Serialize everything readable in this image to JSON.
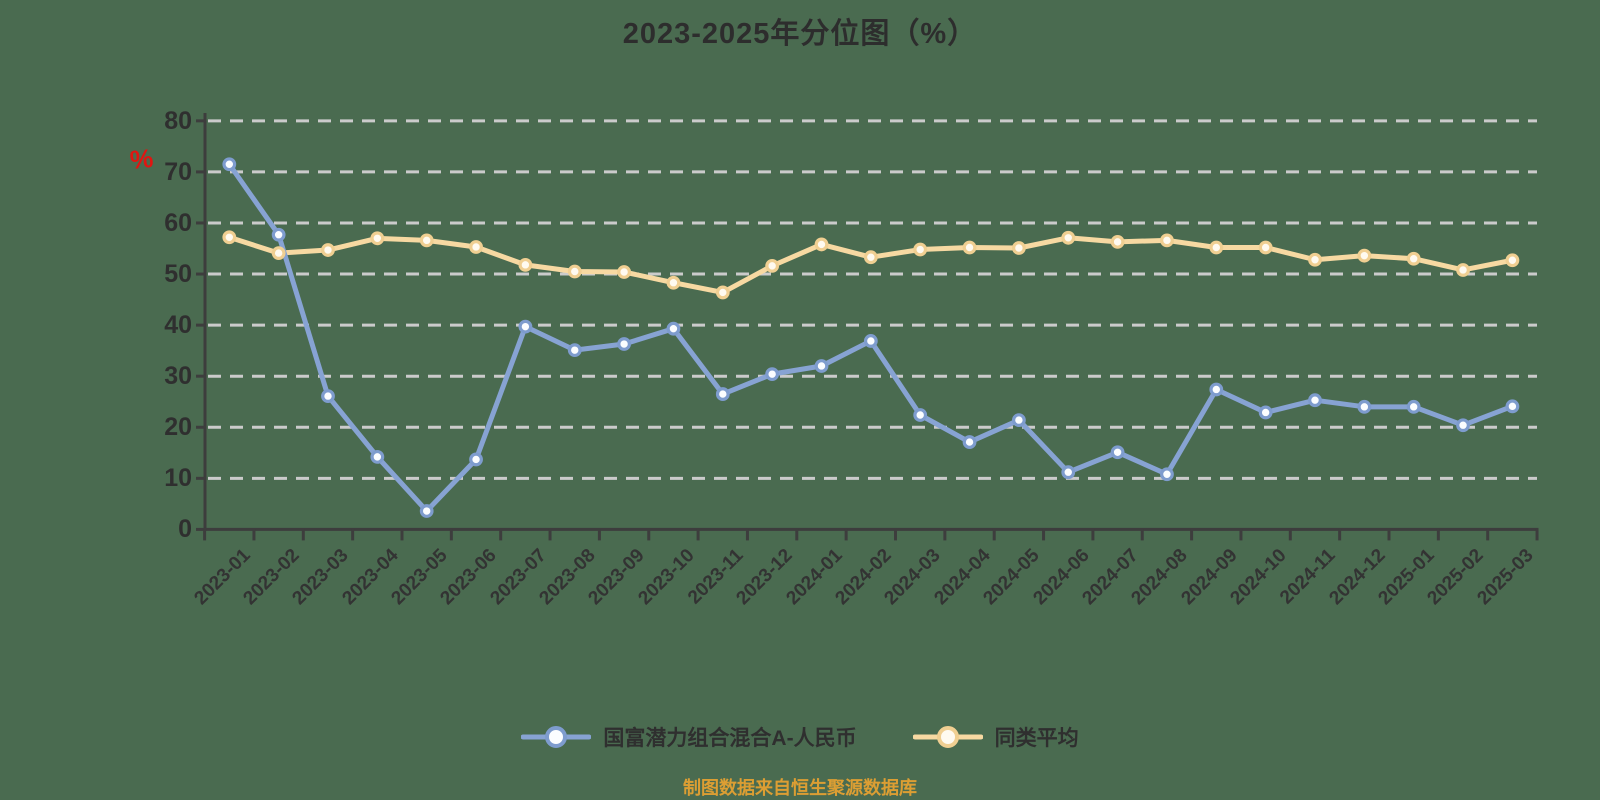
{
  "title": "2023-2025年分位图（%）",
  "source_note": "制图数据来自恒生聚源数据库",
  "axis": {
    "unit_symbol": "%",
    "unit_color": "#e01511"
  },
  "colors": {
    "background": "#4a6b50",
    "grid": "#cbcbcb",
    "axis": "#3d3d3d",
    "text": "#2f2f2f",
    "source_text": "#dc9e33",
    "fund_line": "#87a3d3",
    "fund_marker_stroke": "#7e9cce",
    "average_line": "#f7d9a2",
    "average_marker_stroke": "#f0cf92"
  },
  "chart_data": {
    "type": "line",
    "title": "2023-2025年分位图（%）",
    "xlabel": "",
    "ylabel": "%",
    "ylim": [
      0,
      80
    ],
    "yticks": [
      0,
      10,
      20,
      30,
      40,
      50,
      60,
      70,
      80
    ],
    "grid": true,
    "grid_style": "dashed",
    "legend_position": "bottom",
    "categories": [
      "2023-01",
      "2023-02",
      "2023-03",
      "2023-04",
      "2023-05",
      "2023-06",
      "2023-07",
      "2023-08",
      "2023-09",
      "2023-10",
      "2023-11",
      "2023-12",
      "2024-01",
      "2024-02",
      "2024-03",
      "2024-04",
      "2024-05",
      "2024-06",
      "2024-07",
      "2024-08",
      "2024-09",
      "2024-10",
      "2024-11",
      "2024-12",
      "2025-01",
      "2025-02",
      "2025-03"
    ],
    "series": [
      {
        "name": "国富潜力组合混合A-人民币",
        "color": "#87a3d3",
        "marker_stroke": "#7e9cce",
        "marker_fill": "#fbfdff",
        "values": [
          71.5,
          57.7,
          26.1,
          14.2,
          3.6,
          13.7,
          39.7,
          35.1,
          36.3,
          39.3,
          26.5,
          30.4,
          32.0,
          36.9,
          22.4,
          17.1,
          21.4,
          11.2,
          15.1,
          10.8,
          27.4,
          22.9,
          25.3,
          24.0,
          24.0,
          20.4,
          24.1
        ]
      },
      {
        "name": "同类平均",
        "color": "#f7d9a2",
        "marker_stroke": "#f0cf92",
        "marker_fill": "#fffaf0",
        "values": [
          57.2,
          54.1,
          54.7,
          57.0,
          56.6,
          55.3,
          51.8,
          50.5,
          50.4,
          48.3,
          46.4,
          51.6,
          55.8,
          53.3,
          54.8,
          55.2,
          55.1,
          57.1,
          56.3,
          56.6,
          55.2,
          55.2,
          52.8,
          53.6,
          53.0,
          50.8,
          52.7
        ]
      }
    ]
  }
}
